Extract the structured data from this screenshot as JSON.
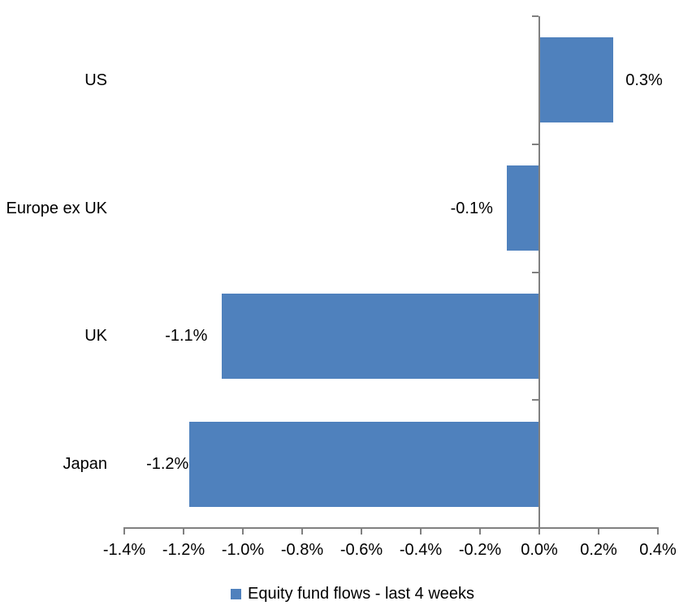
{
  "chart_data": {
    "type": "bar",
    "orientation": "horizontal",
    "title": "",
    "xlabel": "",
    "ylabel": "",
    "grid": false,
    "background": "#FFFFFF",
    "axis_color": "#808080",
    "text_color": "#000000",
    "categories": [
      "US",
      "Europe ex UK",
      "UK",
      "Japan"
    ],
    "series": [
      {
        "name": "Equity fund flows - last 4 weeks",
        "color": "#4F81BD",
        "values": [
          0.25,
          -0.11,
          -1.07,
          -1.18
        ],
        "data_labels": [
          "0.3%",
          "-0.1%",
          "-1.1%",
          "-1.2%"
        ]
      }
    ],
    "x_axis": {
      "min": -1.4,
      "max": 0.4,
      "step": 0.2,
      "tick_values": [
        -1.4,
        -1.2,
        -1.0,
        -0.8,
        -0.6,
        -0.4,
        -0.2,
        0.0,
        0.2,
        0.4
      ],
      "tick_labels": [
        "-1.4%",
        "-1.2%",
        "-1.0%",
        "-0.8%",
        "-0.6%",
        "-0.4%",
        "-0.2%",
        "0.0%",
        "0.2%",
        "0.4%"
      ]
    },
    "legend_position": "bottom"
  },
  "legend": {
    "items": [
      {
        "label": "Equity fund flows - last 4 weeks",
        "color": "#4F81BD"
      }
    ]
  }
}
